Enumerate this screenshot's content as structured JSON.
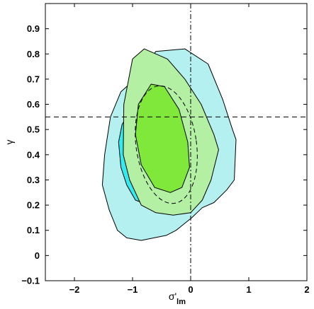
{
  "chart_data": {
    "type": "contour",
    "xlabel": "σ'",
    "xlabel_sub": "lm",
    "ylabel": "γ",
    "xlim": [
      -2.5,
      2.0
    ],
    "ylim": [
      -0.1,
      1.0
    ],
    "x_ticks": [
      -2,
      -1,
      0,
      1,
      2
    ],
    "y_ticks": [
      -0.1,
      0,
      0.1,
      0.2,
      0.3,
      0.4,
      0.5,
      0.6,
      0.7,
      0.8,
      0.9
    ],
    "x_tick_labels": [
      "−2",
      "−1",
      "0",
      "1",
      "2"
    ],
    "y_tick_labels": [
      "−0.1",
      "0",
      "0.1",
      "0.2",
      "0.3",
      "0.4",
      "0.5",
      "0.6",
      "0.7",
      "0.8",
      "0.9"
    ],
    "grid": false,
    "reference_lines": {
      "horizontal_dashed_y": 0.55,
      "vertical_dashdot_x": 0.0
    },
    "colors": {
      "outer_region": "#b3f0ef",
      "cyan_region": "#33eaf0",
      "light_green_region": "#b3f0a3",
      "green_region": "#7fe83a"
    },
    "regions": [
      {
        "key": "outer",
        "points": [
          [
            -0.86,
            0.72
          ],
          [
            -0.6,
            0.81
          ],
          [
            -0.1,
            0.82
          ],
          [
            0.3,
            0.76
          ],
          [
            0.55,
            0.62
          ],
          [
            0.72,
            0.5
          ],
          [
            0.78,
            0.46
          ],
          [
            0.75,
            0.3
          ],
          [
            0.62,
            0.26
          ],
          [
            0.4,
            0.21
          ],
          [
            0.2,
            0.19
          ],
          [
            0.02,
            0.15
          ],
          [
            -0.25,
            0.1
          ],
          [
            -0.42,
            0.08
          ],
          [
            -0.85,
            0.06
          ],
          [
            -1.1,
            0.07
          ],
          [
            -1.26,
            0.1
          ],
          [
            -1.4,
            0.18
          ],
          [
            -1.52,
            0.28
          ],
          [
            -1.48,
            0.4
          ],
          [
            -1.38,
            0.55
          ],
          [
            -1.2,
            0.65
          ]
        ]
      },
      {
        "key": "cyan",
        "points": [
          [
            -1.24,
            0.45
          ],
          [
            -1.18,
            0.52
          ],
          [
            -0.92,
            0.62
          ],
          [
            -0.62,
            0.66
          ],
          [
            -0.38,
            0.62
          ],
          [
            -0.14,
            0.48
          ],
          [
            -0.08,
            0.4
          ],
          [
            -0.15,
            0.3
          ],
          [
            -0.35,
            0.22
          ],
          [
            -0.72,
            0.2
          ],
          [
            -0.95,
            0.22
          ],
          [
            -1.1,
            0.28
          ],
          [
            -1.2,
            0.35
          ]
        ]
      },
      {
        "key": "lightgreen",
        "points": [
          [
            -1.15,
            0.6
          ],
          [
            -1.0,
            0.78
          ],
          [
            -0.8,
            0.82
          ],
          [
            -0.4,
            0.78
          ],
          [
            -0.1,
            0.7
          ],
          [
            0.18,
            0.6
          ],
          [
            0.4,
            0.48
          ],
          [
            0.48,
            0.42
          ],
          [
            0.35,
            0.3
          ],
          [
            0.2,
            0.22
          ],
          [
            0.0,
            0.17
          ],
          [
            -0.3,
            0.16
          ],
          [
            -0.6,
            0.17
          ],
          [
            -0.85,
            0.2
          ],
          [
            -1.05,
            0.3
          ],
          [
            -1.16,
            0.4
          ]
        ]
      },
      {
        "key": "green",
        "points": [
          [
            -0.95,
            0.48
          ],
          [
            -0.9,
            0.6
          ],
          [
            -0.68,
            0.68
          ],
          [
            -0.45,
            0.67
          ],
          [
            -0.2,
            0.58
          ],
          [
            -0.05,
            0.45
          ],
          [
            -0.02,
            0.35
          ],
          [
            -0.15,
            0.27
          ],
          [
            -0.35,
            0.25
          ],
          [
            -0.62,
            0.27
          ],
          [
            -0.85,
            0.36
          ]
        ]
      }
    ],
    "dashed_ellipse": {
      "cx": -0.42,
      "cy": 0.44,
      "rx": 0.52,
      "ry": 0.235,
      "rotation_deg": -8
    }
  }
}
